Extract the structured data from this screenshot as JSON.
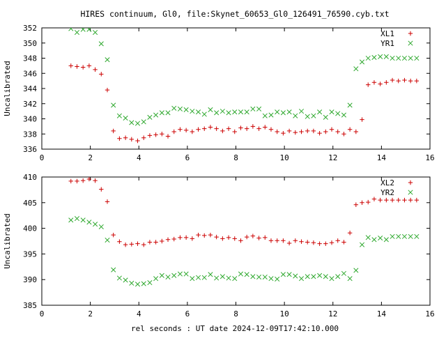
{
  "figure": {
    "title": "HIRES continuum, Gl0, file:Skynet_60653_Gl0_126491_76590.cyb.txt",
    "xlabel": "rel seconds : UT date 2024-12-09T17:42:10.000"
  },
  "chart_data": [
    {
      "type": "scatter",
      "ylabel": "Uncalibrated",
      "xlim": [
        0,
        16
      ],
      "ylim": [
        336,
        352
      ],
      "xticks": [
        0,
        2,
        4,
        6,
        8,
        10,
        12,
        14,
        16
      ],
      "yticks": [
        336,
        338,
        340,
        342,
        344,
        346,
        348,
        350,
        352
      ],
      "xtick_labels": [
        "0",
        "2",
        "4",
        "6",
        "8",
        "10",
        "12",
        "14",
        "16"
      ],
      "ytick_labels": [
        "336",
        "338",
        "340",
        "342",
        "344",
        "346",
        "348",
        "350",
        "352"
      ],
      "grid": false,
      "legend_position": "top-right",
      "x": [
        1.2,
        1.45,
        1.7,
        1.95,
        2.2,
        2.45,
        2.7,
        2.95,
        3.2,
        3.45,
        3.7,
        3.95,
        4.2,
        4.45,
        4.7,
        4.95,
        5.2,
        5.45,
        5.7,
        5.95,
        6.2,
        6.45,
        6.7,
        6.95,
        7.2,
        7.45,
        7.7,
        7.95,
        8.2,
        8.45,
        8.7,
        8.95,
        9.2,
        9.45,
        9.7,
        9.95,
        10.2,
        10.45,
        10.7,
        10.95,
        11.2,
        11.45,
        11.7,
        11.95,
        12.2,
        12.45,
        12.7,
        12.95,
        13.2,
        13.45,
        13.7,
        13.95,
        14.2,
        14.45,
        14.7,
        14.95,
        15.2,
        15.45
      ],
      "series": [
        {
          "name": "XL1",
          "marker": "plus",
          "color": "#cc0000",
          "values": [
            347.0,
            346.9,
            346.8,
            347.0,
            346.5,
            345.9,
            343.8,
            338.4,
            337.4,
            337.5,
            337.3,
            337.1,
            337.5,
            337.8,
            337.9,
            338.0,
            337.7,
            338.3,
            338.6,
            338.5,
            338.3,
            338.6,
            338.7,
            338.9,
            338.7,
            338.4,
            338.7,
            338.3,
            338.8,
            338.7,
            339.0,
            338.7,
            338.9,
            338.6,
            338.3,
            338.1,
            338.4,
            338.2,
            338.3,
            338.4,
            338.4,
            338.1,
            338.3,
            338.6,
            338.3,
            338.0,
            338.6,
            338.3,
            339.9,
            344.5,
            344.8,
            344.6,
            344.8,
            345.1,
            345.0,
            345.1,
            345.0,
            345.0
          ]
        },
        {
          "name": "YR1",
          "marker": "cross",
          "color": "#2ea82e",
          "values": [
            351.9,
            351.4,
            351.8,
            351.8,
            351.4,
            349.9,
            347.8,
            341.8,
            340.4,
            340.1,
            339.5,
            339.4,
            339.6,
            340.2,
            340.5,
            340.8,
            340.8,
            341.4,
            341.3,
            341.2,
            341.0,
            340.9,
            340.6,
            341.2,
            340.8,
            341.0,
            340.8,
            340.9,
            340.9,
            340.9,
            341.3,
            341.3,
            340.4,
            340.5,
            340.9,
            340.8,
            340.9,
            340.4,
            341.0,
            340.3,
            340.4,
            340.9,
            340.2,
            340.9,
            340.7,
            340.5,
            341.8,
            346.6,
            347.5,
            348.0,
            348.1,
            348.2,
            348.2,
            348.0,
            348.0,
            348.0,
            348.0,
            348.0
          ]
        }
      ]
    },
    {
      "type": "scatter",
      "ylabel": "Uncalibrated",
      "xlim": [
        0,
        16
      ],
      "ylim": [
        385,
        410
      ],
      "xticks": [
        0,
        2,
        4,
        6,
        8,
        10,
        12,
        14,
        16
      ],
      "yticks": [
        385,
        390,
        395,
        400,
        405,
        410
      ],
      "xtick_labels": [
        "0",
        "2",
        "4",
        "6",
        "8",
        "10",
        "12",
        "14",
        "16"
      ],
      "ytick_labels": [
        "385",
        "390",
        "395",
        "400",
        "405",
        "410"
      ],
      "grid": false,
      "legend_position": "top-right",
      "x": [
        1.2,
        1.45,
        1.7,
        1.95,
        2.2,
        2.45,
        2.7,
        2.95,
        3.2,
        3.45,
        3.7,
        3.95,
        4.2,
        4.45,
        4.7,
        4.95,
        5.2,
        5.45,
        5.7,
        5.95,
        6.2,
        6.45,
        6.7,
        6.95,
        7.2,
        7.45,
        7.7,
        7.95,
        8.2,
        8.45,
        8.7,
        8.95,
        9.2,
        9.45,
        9.7,
        9.95,
        10.2,
        10.45,
        10.7,
        10.95,
        11.2,
        11.45,
        11.7,
        11.95,
        12.2,
        12.45,
        12.7,
        12.95,
        13.2,
        13.45,
        13.7,
        13.95,
        14.2,
        14.45,
        14.7,
        14.95,
        15.2,
        15.45
      ],
      "series": [
        {
          "name": "XL2",
          "marker": "plus",
          "color": "#cc0000",
          "values": [
            409.2,
            409.2,
            409.3,
            409.6,
            409.3,
            407.6,
            405.2,
            398.7,
            397.4,
            396.8,
            396.9,
            397.0,
            396.8,
            397.3,
            397.3,
            397.5,
            397.8,
            397.9,
            398.2,
            398.2,
            398.0,
            398.7,
            398.6,
            398.7,
            398.3,
            398.0,
            398.2,
            398.0,
            397.6,
            398.3,
            398.5,
            398.1,
            398.2,
            397.6,
            397.6,
            397.6,
            397.1,
            397.6,
            397.4,
            397.3,
            397.2,
            397.0,
            397.0,
            397.2,
            397.6,
            397.3,
            399.1,
            404.6,
            405.0,
            405.1,
            405.7,
            405.5,
            405.5,
            405.5,
            405.5,
            405.5,
            405.5,
            405.5
          ]
        },
        {
          "name": "YR2",
          "marker": "cross",
          "color": "#2ea82e",
          "values": [
            401.6,
            401.9,
            401.6,
            401.2,
            400.8,
            400.3,
            397.7,
            391.9,
            390.3,
            389.9,
            389.3,
            389.1,
            389.2,
            389.4,
            390.2,
            390.8,
            390.5,
            390.8,
            391.1,
            391.1,
            390.2,
            390.4,
            390.4,
            391.0,
            390.3,
            390.6,
            390.3,
            390.2,
            391.1,
            391.0,
            390.6,
            390.5,
            390.5,
            390.2,
            390.1,
            391.0,
            391.0,
            390.7,
            390.2,
            390.6,
            390.6,
            390.8,
            390.6,
            390.2,
            390.6,
            391.2,
            390.2,
            391.8,
            396.8,
            398.2,
            397.8,
            398.1,
            397.8,
            398.4,
            398.4,
            398.4,
            398.4,
            398.4
          ]
        }
      ]
    }
  ]
}
